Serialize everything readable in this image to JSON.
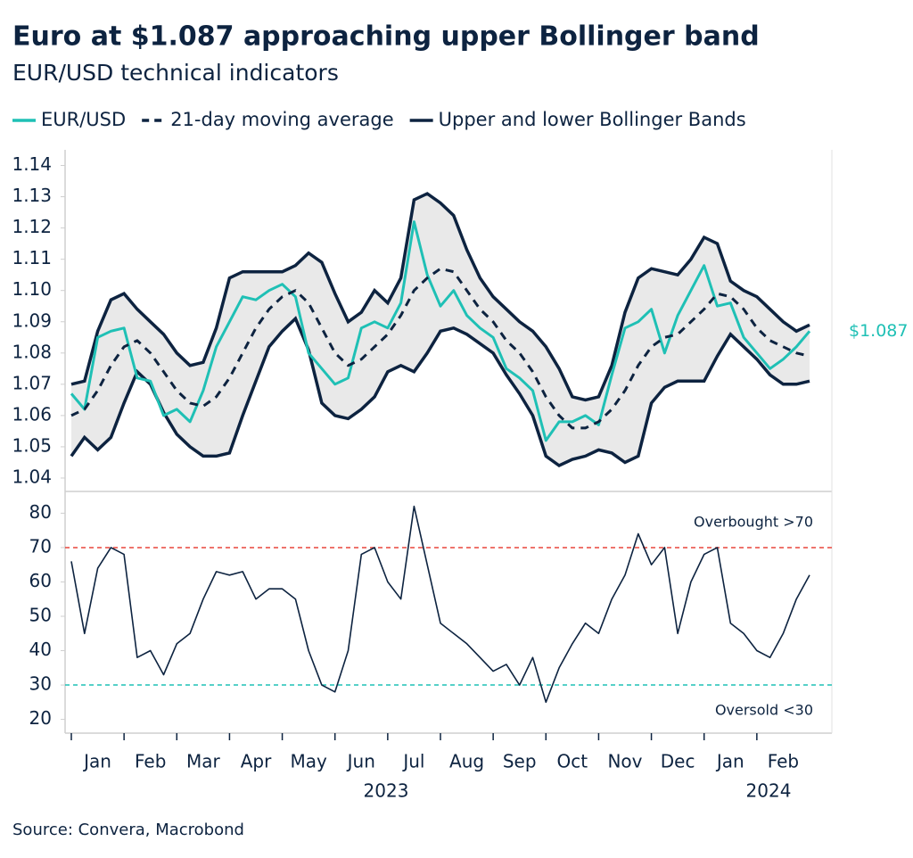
{
  "chart_data": [
    {
      "type": "line",
      "title": "Euro at $1.087 approaching upper Bollinger band",
      "subtitle": "EUR/USD technical indicators",
      "source": "Source: Convera, Macrobond",
      "ylim": [
        1.036,
        1.145
      ],
      "yticks": [
        1.04,
        1.05,
        1.06,
        1.07,
        1.08,
        1.09,
        {
          "value": 1.1,
          "label": "1.10"
        },
        1.11,
        1.12,
        1.13,
        1.14
      ],
      "band_fill": "#e9e9e9",
      "series": [
        {
          "name": "EUR/USD",
          "color": "#1fc0b5",
          "end_label": "$1.087",
          "values": [
            1.067,
            1.062,
            1.085,
            1.087,
            1.088,
            1.072,
            1.071,
            1.06,
            1.062,
            1.058,
            1.068,
            1.082,
            1.09,
            1.098,
            1.097,
            1.1,
            1.102,
            1.098,
            1.08,
            1.075,
            1.07,
            1.072,
            1.088,
            1.09,
            1.088,
            1.096,
            1.122,
            1.105,
            1.095,
            1.1,
            1.092,
            1.088,
            1.085,
            1.075,
            1.072,
            1.068,
            1.052,
            1.058,
            1.058,
            1.06,
            1.057,
            1.073,
            1.088,
            1.09,
            1.094,
            1.08,
            1.092,
            1.1,
            1.108,
            1.095,
            1.096,
            1.085,
            1.08,
            1.075,
            1.078,
            1.082,
            1.087
          ]
        },
        {
          "name": "21-day moving average",
          "color": "#0d2340",
          "dashed": true,
          "values": [
            1.06,
            1.062,
            1.068,
            1.076,
            1.082,
            1.084,
            1.08,
            1.074,
            1.068,
            1.064,
            1.063,
            1.066,
            1.072,
            1.08,
            1.088,
            1.094,
            1.098,
            1.1,
            1.096,
            1.088,
            1.08,
            1.076,
            1.078,
            1.082,
            1.086,
            1.092,
            1.1,
            1.104,
            1.107,
            1.106,
            1.1,
            1.094,
            1.09,
            1.084,
            1.08,
            1.074,
            1.066,
            1.06,
            1.056,
            1.056,
            1.058,
            1.062,
            1.068,
            1.076,
            1.082,
            1.085,
            1.086,
            1.09,
            1.094,
            1.099,
            1.098,
            1.094,
            1.088,
            1.084,
            1.082,
            1.08,
            1.079
          ]
        },
        {
          "name": "Upper and lower Bollinger Bands",
          "color": "#0d2340",
          "upper": [
            1.07,
            1.071,
            1.087,
            1.097,
            1.099,
            1.094,
            1.09,
            1.086,
            1.08,
            1.076,
            1.077,
            1.088,
            1.104,
            1.106,
            1.106,
            1.106,
            1.106,
            1.108,
            1.112,
            1.109,
            1.099,
            1.09,
            1.093,
            1.1,
            1.096,
            1.104,
            1.129,
            1.131,
            1.128,
            1.124,
            1.113,
            1.104,
            1.098,
            1.094,
            1.09,
            1.087,
            1.082,
            1.075,
            1.066,
            1.065,
            1.066,
            1.076,
            1.093,
            1.104,
            1.107,
            1.106,
            1.105,
            1.11,
            1.117,
            1.115,
            1.103,
            1.1,
            1.098,
            1.094,
            1.09,
            1.087,
            1.089
          ],
          "lower": [
            1.047,
            1.053,
            1.049,
            1.053,
            1.064,
            1.074,
            1.07,
            1.061,
            1.054,
            1.05,
            1.047,
            1.047,
            1.048,
            1.06,
            1.071,
            1.082,
            1.087,
            1.091,
            1.081,
            1.064,
            1.06,
            1.059,
            1.062,
            1.066,
            1.074,
            1.076,
            1.074,
            1.08,
            1.087,
            1.088,
            1.086,
            1.083,
            1.08,
            1.073,
            1.067,
            1.06,
            1.047,
            1.044,
            1.046,
            1.047,
            1.049,
            1.048,
            1.045,
            1.047,
            1.064,
            1.069,
            1.071,
            1.071,
            1.071,
            1.079,
            1.086,
            1.082,
            1.078,
            1.073,
            1.07,
            1.07,
            1.071
          ]
        }
      ]
    },
    {
      "type": "line",
      "ylim": [
        16,
        84
      ],
      "yticks": [
        20,
        30,
        40,
        50,
        60,
        70,
        80
      ],
      "categories": [
        null,
        null,
        "Jan",
        null,
        null,
        null,
        "Feb",
        null,
        null,
        null,
        "Mar",
        null,
        null,
        null,
        "Apr",
        null,
        null,
        null,
        "May",
        null,
        null,
        null,
        "Jun",
        null,
        null,
        null,
        "Jul",
        null,
        null,
        null,
        "Aug",
        null,
        null,
        null,
        "Sep",
        null,
        null,
        null,
        "Oct",
        null,
        null,
        null,
        "Nov",
        null,
        null,
        null,
        "Dec",
        null,
        null,
        null,
        "Jan",
        null,
        null,
        null,
        "Feb",
        null,
        null
      ],
      "years": [
        "2023",
        "2024"
      ],
      "thresholds": [
        {
          "value": 70,
          "label": "Overbought >70",
          "color": "#e8463c"
        },
        {
          "value": 30,
          "label": "Oversold <30",
          "color": "#1fc0b5"
        }
      ],
      "series": [
        {
          "color": "#0d2340",
          "values": [
            66,
            45,
            64,
            70,
            68,
            38,
            40,
            33,
            42,
            45,
            55,
            63,
            62,
            63,
            55,
            58,
            58,
            55,
            40,
            30,
            28,
            40,
            68,
            70,
            60,
            55,
            82,
            65,
            48,
            45,
            42,
            38,
            34,
            36,
            30,
            38,
            25,
            35,
            42,
            48,
            45,
            55,
            62,
            74,
            65,
            70,
            45,
            60,
            68,
            70,
            48,
            45,
            40,
            38,
            45,
            55,
            62
          ]
        }
      ]
    }
  ]
}
